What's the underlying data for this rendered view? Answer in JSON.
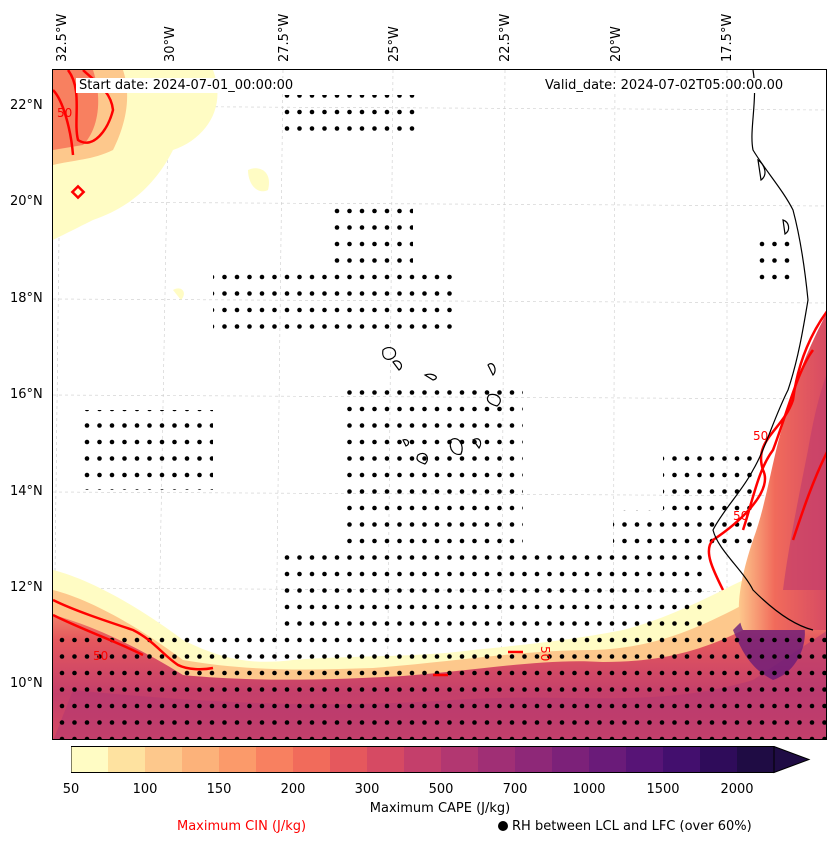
{
  "map": {
    "start_date": "Start date: 2024-07-01_00:00:00",
    "valid_date": "Valid_date: 2024-07-02T05:00:00.00",
    "longitude_labels": [
      "32.5°W",
      "30°W",
      "27.5°W",
      "25°W",
      "22.5°W",
      "20°W",
      "17.5°W"
    ],
    "latitude_labels": [
      "22°N",
      "20°N",
      "18°N",
      "16°N",
      "14°N",
      "12°N",
      "10°N"
    ],
    "contour_labels": [
      "50",
      "50",
      "50",
      "50",
      "50"
    ]
  },
  "colorbar": {
    "label": "Maximum CAPE (J/kg)",
    "ticks": [
      "50",
      "100",
      "150",
      "200",
      "300",
      "500",
      "700",
      "1000",
      "1500",
      "2000"
    ],
    "colors": [
      "#fffcc4",
      "#fee2a0",
      "#fdc88c",
      "#fcb27a",
      "#fb9a6a",
      "#f88060",
      "#f16b5b",
      "#e5585d",
      "#d64a63",
      "#c43f6b",
      "#b23771",
      "#a02f75",
      "#8e2878",
      "#7c2179",
      "#6a1b79",
      "#571476",
      "#430f6e",
      "#2f0c5a",
      "#1f0c44"
    ]
  },
  "legend": {
    "cin_label": "Maximum CIN (J/kg)",
    "rh_label": "RH between LCL and LFC (over 60%)",
    "cin_color": "#ff0000"
  }
}
